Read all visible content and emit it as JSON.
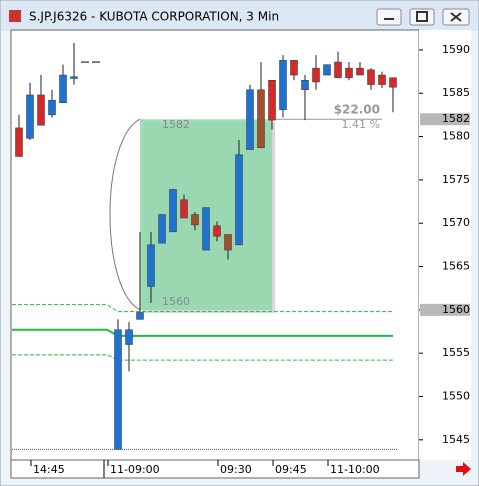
{
  "chart_data": {
    "type": "candlestick",
    "title": "S.JP.J6326 - KUBOTA CORPORATION, 3 Min",
    "categories": [
      null,
      null,
      "14:45",
      null,
      null,
      null,
      null,
      null,
      null,
      "11-09:00",
      null,
      null,
      null,
      null,
      null,
      null,
      null,
      null,
      null,
      "09:30",
      null,
      null,
      null,
      null,
      "09:45",
      null,
      null,
      null,
      null,
      "11-10:00",
      null,
      null,
      null,
      null,
      null
    ],
    "open": [
      1581.0,
      1579.8,
      1584.8,
      1582.5,
      1583.9,
      1586.9,
      1588.6,
      1588.6,
      null,
      1543.9,
      1556.0,
      1558.9,
      1562.7,
      1567.7,
      1569.0,
      1572.7,
      1571.0,
      1566.9,
      1569.7,
      1568.7,
      1567.5,
      1578.5,
      1585.4,
      1586.5,
      1583.1,
      1588.8,
      1585.4,
      1587.9,
      1587.1,
      1588.6,
      1587.9,
      1587.9,
      1587.7,
      1587.1,
      1586.8
    ],
    "high": [
      1582.5,
      1586.2,
      1587.1,
      1585.4,
      1588.3,
      1590.8,
      1588.6,
      1588.6,
      null,
      1558.9,
      1558.6,
      1569.0,
      1569.0,
      1571.0,
      1573.9,
      1573.3,
      1571.3,
      1571.8,
      1570.2,
      1568.7,
      1579.6,
      1586.0,
      1588.6,
      1586.5,
      1589.4,
      1588.8,
      1587.1,
      1589.4,
      1588.3,
      1589.8,
      1588.6,
      1588.6,
      1587.9,
      1587.5,
      1586.8
    ],
    "low": [
      1577.7,
      1579.6,
      1581.3,
      1582.2,
      1583.9,
      1586.0,
      1588.6,
      1588.6,
      null,
      1543.9,
      1552.9,
      1558.9,
      1560.8,
      1567.7,
      1569.0,
      1570.6,
      1569.2,
      1566.9,
      1567.9,
      1565.8,
      1567.5,
      1578.5,
      1578.7,
      1580.8,
      1582.2,
      1586.5,
      1581.9,
      1585.4,
      1587.1,
      1586.8,
      1586.5,
      1587.1,
      1585.4,
      1585.6,
      1582.8
    ],
    "close": [
      1577.7,
      1584.8,
      1581.3,
      1584.2,
      1587.1,
      1586.7,
      1588.6,
      1588.6,
      null,
      1557.7,
      1557.7,
      1559.7,
      1567.5,
      1571.0,
      1573.9,
      1570.6,
      1569.8,
      1571.8,
      1568.5,
      1566.9,
      1577.9,
      1585.4,
      1578.7,
      1581.9,
      1588.8,
      1587.1,
      1586.5,
      1586.3,
      1588.3,
      1586.8,
      1586.8,
      1587.1,
      1586.0,
      1586.0,
      1585.7
    ],
    "colors": [
      "#d42a2a",
      "#1e73d2",
      "#d42a2a",
      "#1e73d2",
      "#1e73d2",
      "#1e73d2",
      "#000000",
      "#000000",
      null,
      "#1e73d2",
      "#1e73d2",
      "#1e73d2",
      "#1e73d2",
      "#1e73d2",
      "#1e73d2",
      "#d42a2a",
      "#a0522d",
      "#1e73d2",
      "#d42a2a",
      "#a0522d",
      "#1e73d2",
      "#1e73d2",
      "#a0522d",
      "#d42a2a",
      "#1e73d2",
      "#d42a2a",
      "#1e73d2",
      "#d42a2a",
      "#1e73d2",
      "#d42a2a",
      "#d42a2a",
      "#d42a2a",
      "#d42a2a",
      "#d42a2a",
      "#d42a2a"
    ],
    "bands": [
      {
        "color": "#22bb44",
        "dashed": true,
        "values": [
          1560.6,
          1560.6,
          1560.6,
          1560.6,
          1560.6,
          1560.6,
          1560.6,
          1560.6,
          1560.6,
          1559.8,
          1559.8,
          1559.8,
          1559.8,
          1559.8,
          1559.8,
          1559.8,
          1559.8,
          1559.8,
          1559.8,
          1559.8,
          1559.8,
          1559.8,
          1559.8,
          1559.8,
          1559.8,
          1559.8,
          1559.8,
          1559.8,
          1559.8,
          1559.8,
          1559.8,
          1559.8,
          1559.8,
          1559.8,
          1559.8
        ]
      },
      {
        "color": "#22bb44",
        "dashed": false,
        "values": [
          1557.7,
          1557.7,
          1557.7,
          1557.7,
          1557.7,
          1557.7,
          1557.7,
          1557.7,
          1557.7,
          1557.0,
          1557.0,
          1557.0,
          1557.0,
          1557.0,
          1557.0,
          1557.0,
          1557.0,
          1557.0,
          1557.0,
          1557.0,
          1557.0,
          1557.0,
          1557.0,
          1557.0,
          1557.0,
          1557.0,
          1557.0,
          1557.0,
          1557.0,
          1557.0,
          1557.0,
          1557.0,
          1557.0,
          1557.0,
          1557.0
        ]
      },
      {
        "color": "#22bb44",
        "dashed": true,
        "values": [
          1554.8,
          1554.8,
          1554.8,
          1554.8,
          1554.8,
          1554.8,
          1554.8,
          1554.8,
          1554.8,
          1554.2,
          1554.2,
          1554.2,
          1554.2,
          1554.2,
          1554.2,
          1554.2,
          1554.2,
          1554.2,
          1554.2,
          1554.2,
          1554.2,
          1554.2,
          1554.2,
          1554.2,
          1554.2,
          1554.2,
          1554.2,
          1554.2,
          1554.2,
          1554.2,
          1554.2,
          1554.2,
          1554.2,
          1554.2,
          1554.2
        ]
      }
    ],
    "reference_line": 1543.9,
    "price_markers": [
      1582,
      1560
    ],
    "measure": {
      "high": 1582,
      "low": 1560,
      "start": 11,
      "end": 23,
      "change": "$22.00",
      "percent": "1.41 %"
    },
    "ylim": [
      1542.9,
      1592.3
    ],
    "yticks": [
      1545,
      1550,
      1555,
      1560,
      1565,
      1570,
      1575,
      1580,
      1585,
      1590
    ]
  }
}
